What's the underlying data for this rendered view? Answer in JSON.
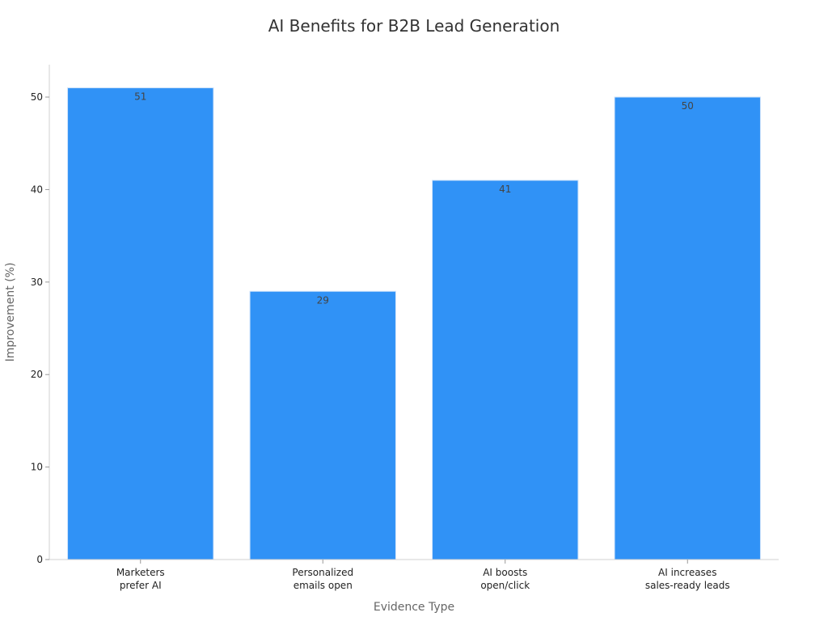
{
  "chart_data": {
    "type": "bar",
    "title": "AI Benefits for B2B Lead Generation",
    "xlabel": "Evidence Type",
    "ylabel": "Improvement (%)",
    "categories": [
      [
        "Marketers",
        "prefer AI"
      ],
      [
        "Personalized",
        "emails open"
      ],
      [
        "AI boosts",
        "open/click"
      ],
      [
        "AI increases",
        "sales-ready leads"
      ]
    ],
    "values": [
      51,
      29,
      41,
      50
    ],
    "ylim": [
      0,
      53.5
    ],
    "yticks": [
      0,
      10,
      20,
      30,
      40,
      50
    ],
    "grid": false,
    "bar_color": "#3092f6"
  }
}
